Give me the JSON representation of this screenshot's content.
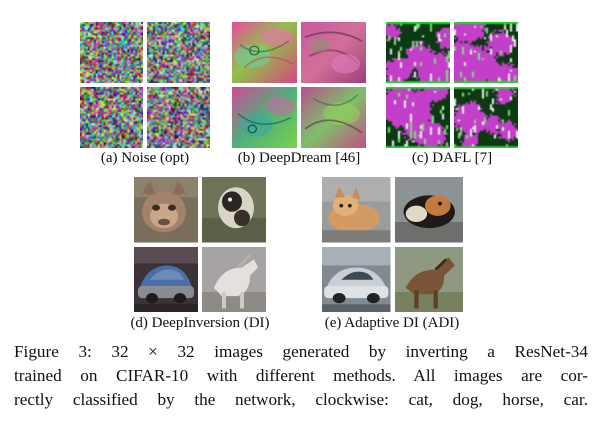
{
  "panels": [
    {
      "label": "(a) Noise (opt)",
      "style": "noise"
    },
    {
      "label": "(b) DeepDream [46]",
      "style": "dream"
    },
    {
      "label": "(c) DAFL [7]",
      "style": "dafl"
    },
    {
      "label": "(d) DeepInversion (DI)",
      "style": "di"
    },
    {
      "label": "(e) Adaptive DI (ADI)",
      "style": "adi"
    }
  ],
  "figure_caption": {
    "line1": "Figure 3: 32 × 32 images generated by inverting a ResNet-34",
    "line2": "trained on CIFAR-10 with different methods. All images are cor-",
    "line3": "rectly classified by the network, clockwise: cat, dog, horse, car."
  }
}
